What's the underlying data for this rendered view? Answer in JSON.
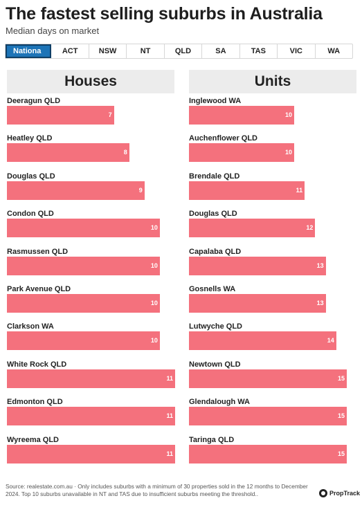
{
  "header": {
    "title": "The fastest selling suburbs in Australia",
    "subtitle": "Median days on market"
  },
  "tabs": [
    {
      "label": "Nationa",
      "active": true
    },
    {
      "label": "ACT",
      "active": false
    },
    {
      "label": "NSW",
      "active": false
    },
    {
      "label": "NT",
      "active": false
    },
    {
      "label": "QLD",
      "active": false
    },
    {
      "label": "SA",
      "active": false
    },
    {
      "label": "TAS",
      "active": false
    },
    {
      "label": "VIC",
      "active": false
    },
    {
      "label": "WA",
      "active": false
    }
  ],
  "chart_data": [
    {
      "type": "bar",
      "title": "Houses",
      "xlim": [
        0,
        11
      ],
      "bar_color": "#f4717d",
      "categories": [
        "Deeragun QLD",
        "Heatley QLD",
        "Douglas QLD",
        "Condon QLD",
        "Rasmussen QLD",
        "Park Avenue QLD",
        "Clarkson WA",
        "White Rock QLD",
        "Edmonton QLD",
        "Wyreema QLD"
      ],
      "values": [
        7,
        8,
        9,
        10,
        10,
        10,
        10,
        11,
        11,
        11
      ]
    },
    {
      "type": "bar",
      "title": "Units",
      "xlim": [
        0,
        15
      ],
      "bar_color": "#f4717d",
      "categories": [
        "Inglewood WA",
        "Auchenflower QLD",
        "Brendale QLD",
        "Douglas QLD",
        "Capalaba QLD",
        "Gosnells WA",
        "Lutwyche QLD",
        "Newtown QLD",
        "Glendalough WA",
        "Taringa QLD"
      ],
      "values": [
        10,
        10,
        11,
        12,
        13,
        13,
        14,
        15,
        15,
        15
      ]
    }
  ],
  "footer": {
    "source": "Source: realestate.com.au · Only includes suburbs with a minimum of 30 properties sold in the 12 months to December 2024. Top 10 suburbs unavailable in NT and TAS due to insufficient suburbs meeting the threshold..",
    "logo_text": "PropTrack"
  }
}
